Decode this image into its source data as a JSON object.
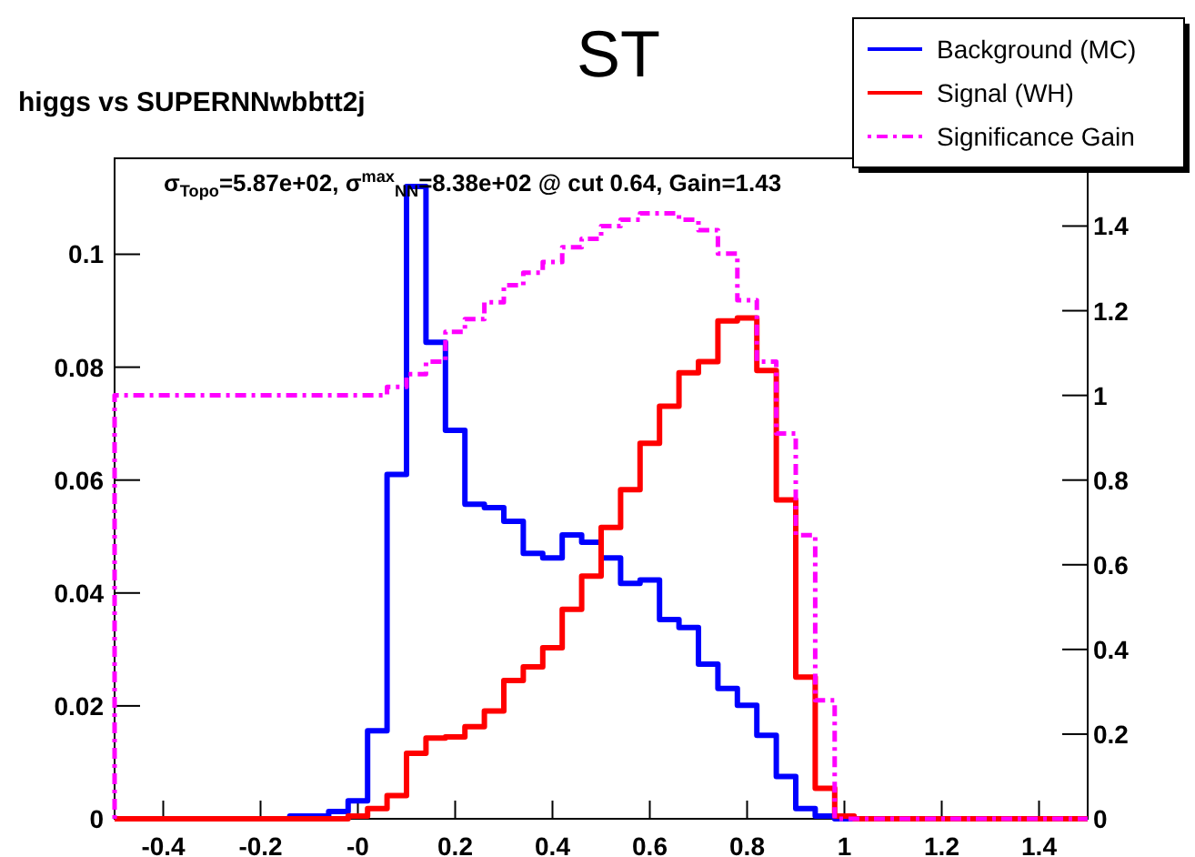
{
  "chart_data": {
    "type": "histogram",
    "title": "ST",
    "subtitle": "higgs vs SUPERNNwbbtt2j",
    "annotations": [
      "σ$_{Topo}$=5.87e+02, σ$^{max}$$_{NN}$=8.38e+02 @ cut 0.64,  Gain=1.43"
    ],
    "bins": [
      -0.5,
      -0.46,
      -0.42,
      -0.38,
      -0.34,
      -0.3,
      -0.26,
      -0.22,
      -0.18,
      -0.14,
      -0.1,
      -0.06,
      -0.02,
      0.02,
      0.06,
      0.1,
      0.14,
      0.18,
      0.22,
      0.26,
      0.3,
      0.34,
      0.38,
      0.42,
      0.46,
      0.5,
      0.54,
      0.58,
      0.62,
      0.66,
      0.7,
      0.74,
      0.78,
      0.82,
      0.86,
      0.9,
      0.94,
      0.98,
      1.02,
      1.06,
      1.1,
      1.14,
      1.18,
      1.22,
      1.26,
      1.3,
      1.34,
      1.38,
      1.42,
      1.46,
      1.5
    ],
    "series": [
      {
        "name": "Background (MC)",
        "color": "#0000ff",
        "values": [
          0,
          0,
          0,
          0,
          0,
          0,
          0,
          0,
          0,
          0.0005,
          0.0005,
          0.0013,
          0.0032,
          0.0156,
          0.061,
          0.112,
          0.0844,
          0.0688,
          0.0557,
          0.0551,
          0.0527,
          0.047,
          0.0462,
          0.0503,
          0.049,
          0.0462,
          0.0417,
          0.0423,
          0.0353,
          0.0339,
          0.0274,
          0.0231,
          0.0201,
          0.0148,
          0.0075,
          0.0018,
          0.0005,
          0,
          0,
          0,
          0,
          0,
          0,
          0,
          0,
          0,
          0,
          0,
          0,
          0
        ]
      },
      {
        "name": "Signal (WH)",
        "color": "#ff0000",
        "values": [
          0,
          0,
          0,
          0,
          0,
          0,
          0,
          0,
          0,
          0,
          0,
          0,
          0.0005,
          0.0018,
          0.0041,
          0.0116,
          0.0143,
          0.0145,
          0.0163,
          0.0191,
          0.0245,
          0.0269,
          0.0303,
          0.0371,
          0.043,
          0.0516,
          0.0583,
          0.0665,
          0.0731,
          0.079,
          0.081,
          0.0882,
          0.0887,
          0.0794,
          0.0565,
          0.0251,
          0.0054,
          0.0005,
          0,
          0,
          0,
          0,
          0,
          0,
          0,
          0,
          0,
          0,
          0,
          0
        ]
      },
      {
        "name": "Significance Gain",
        "color": "#ff00ff",
        "axis": "y2",
        "line_style": "dotted",
        "values": [
          1,
          1,
          1,
          1,
          1,
          1,
          1,
          1,
          1,
          1,
          1,
          1,
          1,
          1,
          1.02,
          1.05,
          1.08,
          1.15,
          1.18,
          1.22,
          1.26,
          1.29,
          1.315,
          1.35,
          1.37,
          1.4,
          1.415,
          1.43,
          1.43,
          1.415,
          1.39,
          1.335,
          1.225,
          1.08,
          0.91,
          0.67,
          0.28,
          0,
          0,
          0,
          0,
          0,
          0,
          0,
          0,
          0,
          0,
          0,
          0,
          0
        ]
      }
    ],
    "xlim": [
      -0.5,
      1.5
    ],
    "xticks": [
      -0.4,
      -0.2,
      {
        "value": 0,
        "label": "-0"
      },
      0.2,
      0.4,
      0.6,
      0.8,
      1,
      1.2,
      1.4
    ],
    "ylim": [
      0,
      0.117
    ],
    "yticks": [
      0,
      0.02,
      0.04,
      0.06,
      0.08,
      0.1
    ],
    "y2lim": [
      0,
      1.56
    ],
    "y2ticks": [
      0,
      0.2,
      0.4,
      0.6,
      0.8,
      1,
      1.2,
      1.4
    ],
    "legend": "top right",
    "grid": false
  }
}
